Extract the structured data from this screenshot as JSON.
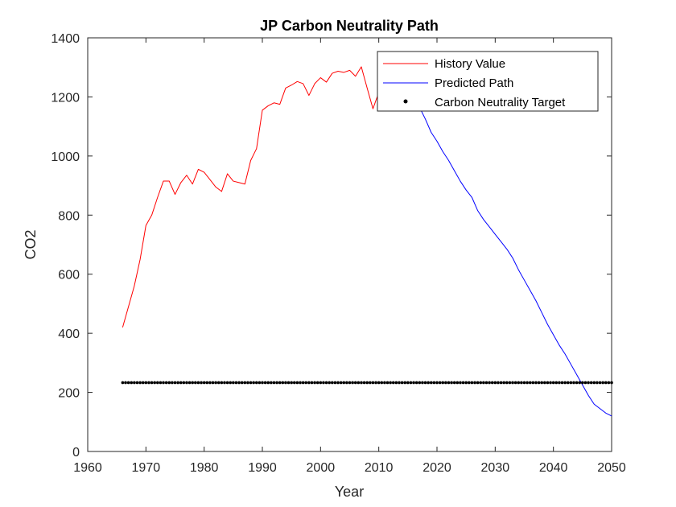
{
  "chart_data": {
    "type": "line",
    "title": "JP Carbon Neutrality Path",
    "xlabel": "Year",
    "ylabel": "CO2",
    "xlim": [
      1960,
      2050
    ],
    "ylim": [
      0,
      1400
    ],
    "xticks": [
      1960,
      1970,
      1980,
      1990,
      2000,
      2010,
      2020,
      2030,
      2040,
      2050
    ],
    "yticks": [
      0,
      200,
      400,
      600,
      800,
      1000,
      1200,
      1400
    ],
    "grid": false,
    "legend_position": "top-right",
    "series": [
      {
        "name": "History Value",
        "color": "#ff0000",
        "style": "line",
        "x": [
          1966,
          1967,
          1968,
          1969,
          1970,
          1971,
          1972,
          1973,
          1974,
          1975,
          1976,
          1977,
          1978,
          1979,
          1980,
          1981,
          1982,
          1983,
          1984,
          1985,
          1986,
          1987,
          1988,
          1989,
          1990,
          1991,
          1992,
          1993,
          1994,
          1995,
          1996,
          1997,
          1998,
          1999,
          2000,
          2001,
          2002,
          2003,
          2004,
          2005,
          2006,
          2007,
          2008,
          2009,
          2010,
          2011,
          2012,
          2013,
          2014,
          2015,
          2016,
          2017
        ],
        "y": [
          420,
          490,
          560,
          650,
          765,
          800,
          860,
          915,
          915,
          870,
          910,
          935,
          905,
          955,
          945,
          920,
          895,
          880,
          940,
          915,
          910,
          905,
          985,
          1025,
          1155,
          1170,
          1180,
          1175,
          1230,
          1240,
          1252,
          1245,
          1205,
          1245,
          1265,
          1250,
          1280,
          1287,
          1283,
          1290,
          1270,
          1302,
          1230,
          1160,
          1215,
          1250,
          1255,
          1240,
          1220,
          1200,
          1185,
          1165
        ]
      },
      {
        "name": "Predicted Path",
        "color": "#0000ff",
        "style": "line",
        "x": [
          2017,
          2018,
          2019,
          2020,
          2021,
          2022,
          2023,
          2024,
          2025,
          2026,
          2027,
          2028,
          2029,
          2030,
          2031,
          2032,
          2033,
          2034,
          2035,
          2036,
          2037,
          2038,
          2039,
          2040,
          2041,
          2042,
          2043,
          2044,
          2045,
          2046,
          2047,
          2048,
          2049,
          2050
        ],
        "y": [
          1165,
          1125,
          1080,
          1050,
          1015,
          985,
          950,
          915,
          885,
          860,
          815,
          785,
          760,
          735,
          710,
          685,
          655,
          615,
          580,
          545,
          510,
          470,
          430,
          395,
          360,
          330,
          295,
          260,
          225,
          190,
          160,
          145,
          130,
          120
        ]
      },
      {
        "name": "Carbon Neutrality Target",
        "color": "#000000",
        "style": "dots",
        "value": 233,
        "x_start": 1966,
        "x_end": 2050
      }
    ]
  }
}
